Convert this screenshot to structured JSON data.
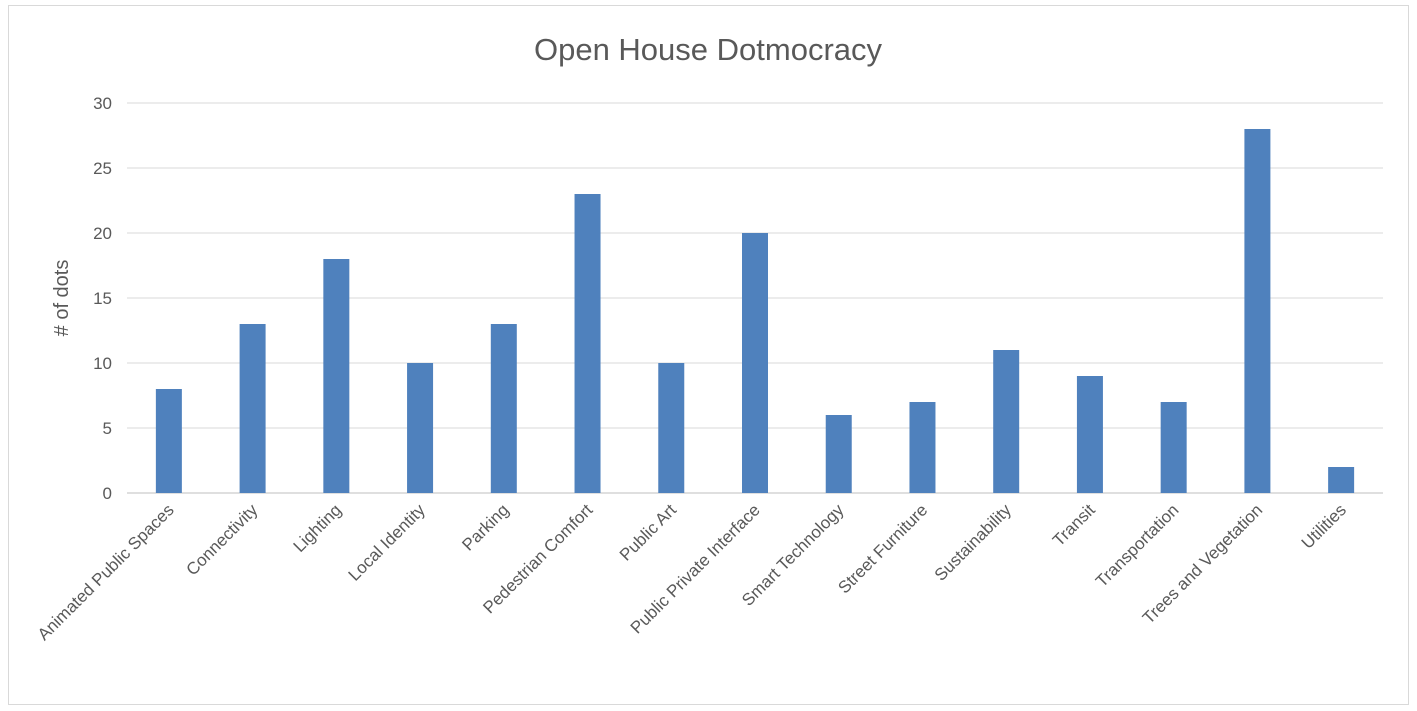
{
  "chart_data": {
    "type": "bar",
    "title": "Open House Dotmocracy",
    "xlabel": "",
    "ylabel": "# of dots",
    "ylim": [
      0,
      30
    ],
    "yticks": [
      0,
      5,
      10,
      15,
      20,
      25,
      30
    ],
    "grid": true,
    "legend": "none",
    "bar_color": "#4f81bd",
    "categories": [
      "Animated Public Spaces",
      "Connectivity",
      "Lighting",
      "Local Identity",
      "Parking",
      "Pedestrian Comfort",
      "Public Art",
      "Public Private Interface",
      "Smart Technology",
      "Street Furniture",
      "Sustainability",
      "Transit",
      "Transportation",
      "Trees and Vegetation",
      "Utilities"
    ],
    "values": [
      8,
      13,
      18,
      10,
      13,
      23,
      10,
      20,
      6,
      7,
      11,
      9,
      7,
      28,
      2
    ]
  }
}
